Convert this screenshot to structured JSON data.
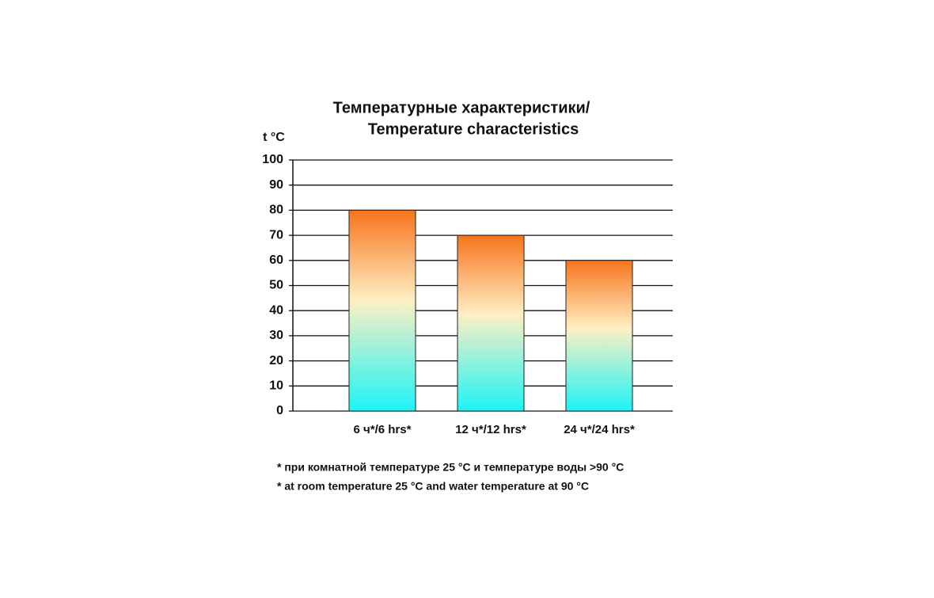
{
  "chart_data": {
    "type": "bar",
    "title": [
      "Температурные характеристики/",
      "Temperature characteristics"
    ],
    "y_label": "t °C",
    "categories": [
      "6 ч*/6 hrs*",
      "12 ч*/12 hrs*",
      "24 ч*/24 hrs*"
    ],
    "values": [
      80,
      70,
      60
    ],
    "color": [
      "#f7741c",
      "#ffefc4",
      "#1cf4f6"
    ],
    "ylim": [
      0,
      100
    ],
    "yticks": [
      0,
      10,
      20,
      30,
      40,
      50,
      60,
      70,
      80,
      90,
      100
    ],
    "grid": true,
    "notes": [
      "* при комнатной температуре 25 °C и температуре воды >90 °C",
      "* at room temperature 25 °C and water temperature at 90 °C"
    ]
  }
}
